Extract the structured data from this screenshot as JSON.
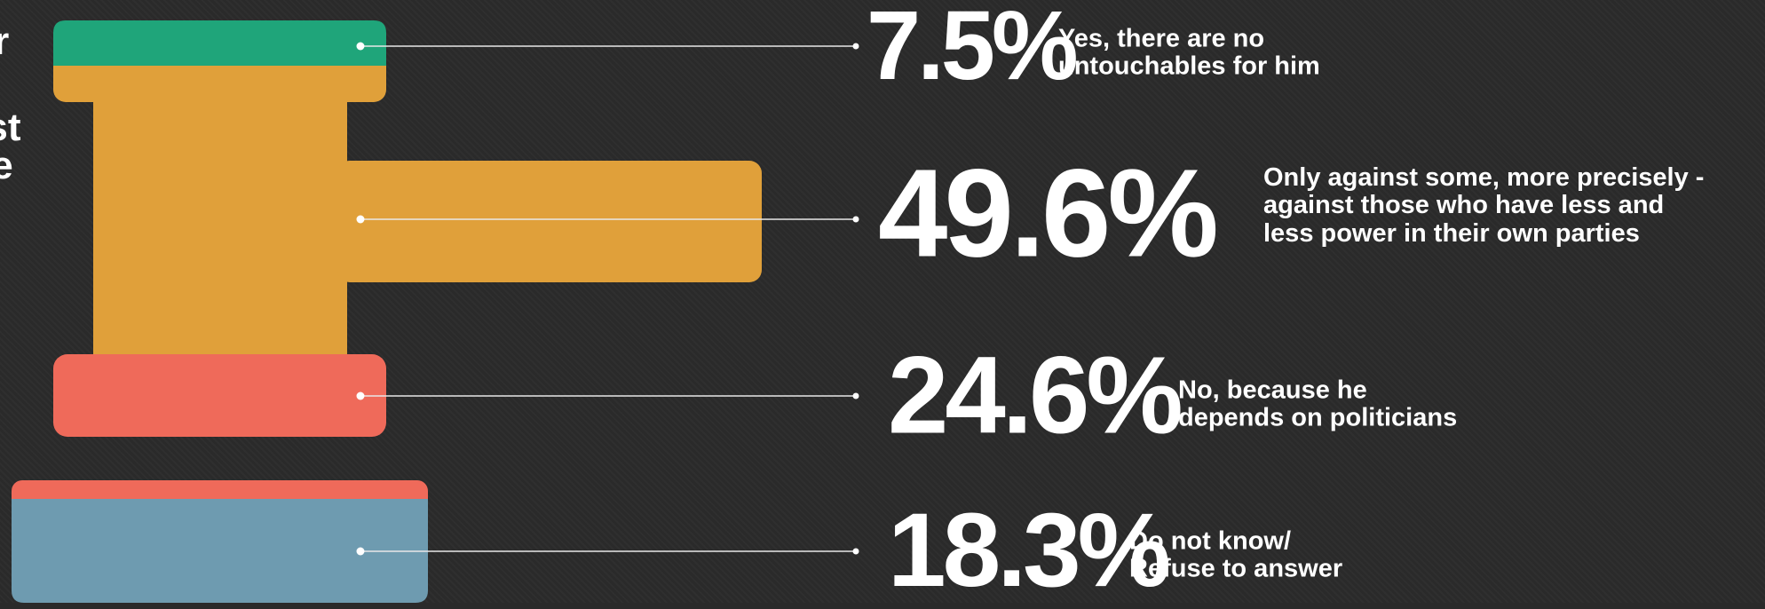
{
  "chart_data": {
    "type": "pictorial",
    "title_lines": [
      "r",
      "st",
      "e"
    ],
    "categories": [
      "Yes, there are no\nuntouchables for him",
      "Only against some, more precisely -\nagainst those who have less and\nless power in their own parties",
      "No, because he\ndepends on politicians",
      "Do not know/\nRefuse to answer"
    ],
    "values": [
      7.5,
      49.6,
      24.6,
      18.3
    ],
    "value_labels": [
      "7.5%",
      "49.6%",
      "24.6%",
      "18.3%"
    ],
    "colors": [
      "#1fa57a",
      "#e0a03a",
      "#ef6a5a",
      "#6e9bb0"
    ]
  }
}
